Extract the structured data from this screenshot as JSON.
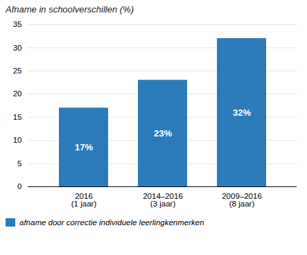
{
  "chart_data": {
    "type": "bar",
    "title": "Afname in schoolverschillen (%)",
    "categories": [
      "2016\n(1 jaar)",
      "2014–2016\n(3 jaar)",
      "2009–2016\n(8 jaar)"
    ],
    "series": [
      {
        "name": "afname door correctie individuele leerlingkenmerken",
        "color": "#2b7bba",
        "values": [
          17,
          23,
          32
        ],
        "value_labels": [
          "17%",
          "23%",
          "32%"
        ]
      }
    ],
    "ylim": [
      0,
      35
    ],
    "yticks": [
      0,
      5,
      10,
      15,
      20,
      25,
      30,
      35
    ],
    "grid": true,
    "data_labels": true,
    "legend": "lower left"
  }
}
